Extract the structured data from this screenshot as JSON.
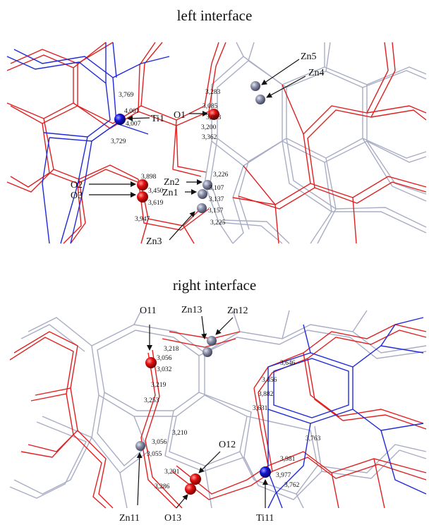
{
  "titles": {
    "top": "left interface",
    "bottom": "right interface"
  },
  "colors": {
    "red_bond": "#e02020",
    "blue_bond": "#1f2ad8",
    "grey_bond": "#a9adc4",
    "oxygen": "#e31010",
    "titanium": "#1515d6",
    "zinc": "#8d92ab"
  },
  "left_panel": {
    "atoms": [
      {
        "id": "Ti1",
        "label": "Ti1",
        "kind": "titanium"
      },
      {
        "id": "O1",
        "label": "O1",
        "kind": "oxygen"
      },
      {
        "id": "Zn5",
        "label": "Zn5",
        "kind": "zinc"
      },
      {
        "id": "Zn4",
        "label": "Zn4",
        "kind": "zinc"
      },
      {
        "id": "O2",
        "label": "O2",
        "kind": "oxygen"
      },
      {
        "id": "O3",
        "label": "O3",
        "kind": "oxygen"
      },
      {
        "id": "Zn2",
        "label": "Zn2",
        "kind": "zinc"
      },
      {
        "id": "Zn1",
        "label": "Zn1",
        "kind": "zinc"
      },
      {
        "id": "Zn3",
        "label": "Zn3",
        "kind": "zinc"
      }
    ],
    "distances": [
      "3,769",
      "4,001",
      "4,007",
      "3,729",
      "3,283",
      "3,085",
      "3,083",
      "3,200",
      "3,362",
      "3,898",
      "3,450",
      "3,619",
      "3,947",
      "3,226",
      "3,107",
      "3,137",
      "3,157",
      "3,225"
    ]
  },
  "right_panel": {
    "atoms": [
      {
        "id": "O11",
        "label": "O11",
        "kind": "oxygen"
      },
      {
        "id": "Zn13",
        "label": "Zn13",
        "kind": "zinc"
      },
      {
        "id": "Zn12",
        "label": "Zn12",
        "kind": "zinc"
      },
      {
        "id": "O12",
        "label": "O12",
        "kind": "oxygen"
      },
      {
        "id": "Zn11",
        "label": "Zn11",
        "kind": "zinc"
      },
      {
        "id": "O13",
        "label": "O13",
        "kind": "oxygen"
      },
      {
        "id": "Ti11",
        "label": "Ti11",
        "kind": "titanium"
      }
    ],
    "distances": [
      "3,218",
      "3,056",
      "3,032",
      "3,219",
      "3,253",
      "3,646",
      "3,856",
      "3,882",
      "3,631",
      "3,210",
      "3,056",
      "3,055",
      "3,291",
      "3,286",
      "3,763",
      "3,981",
      "3,977",
      "3,762"
    ]
  }
}
